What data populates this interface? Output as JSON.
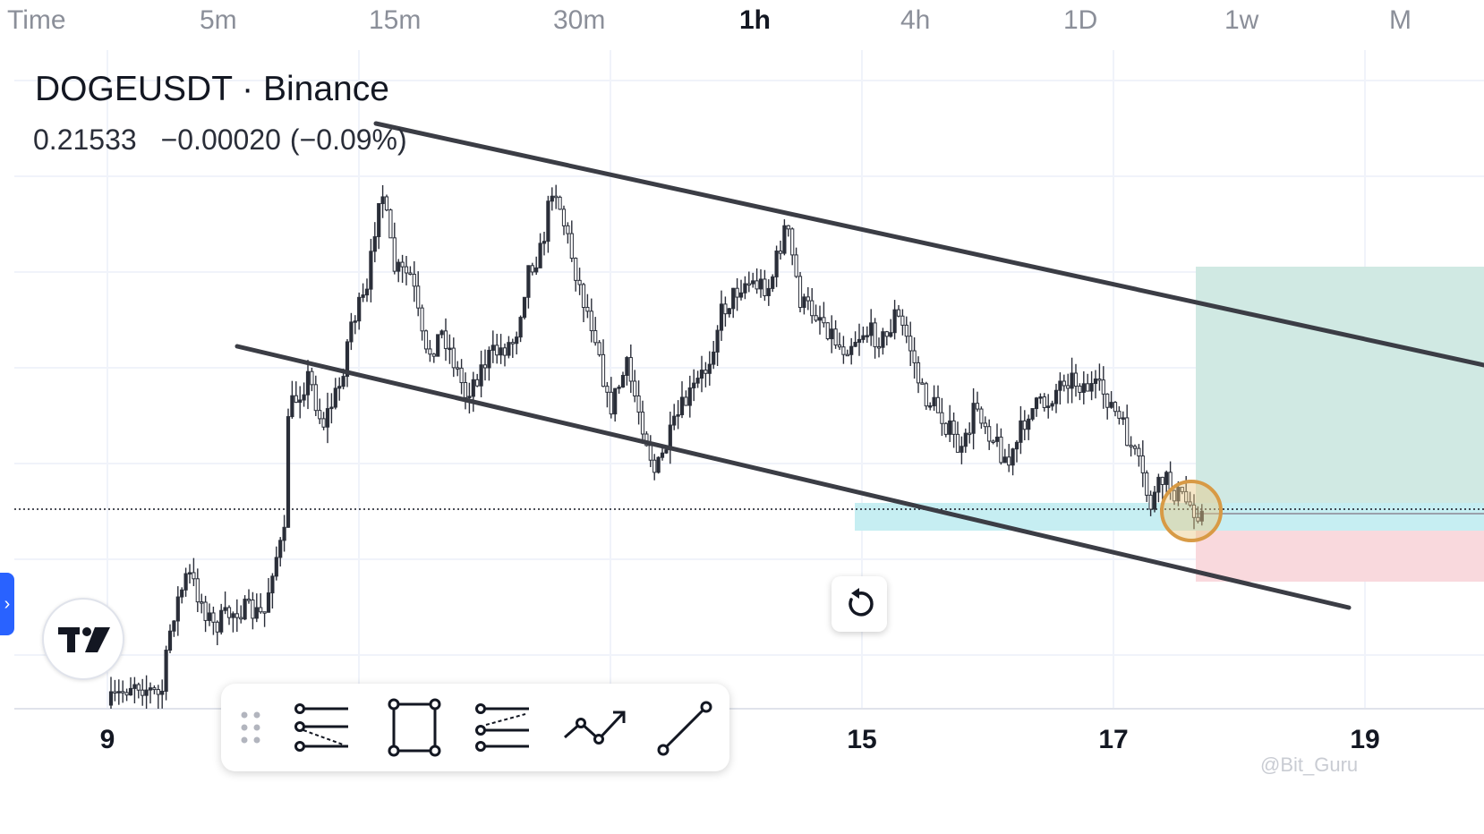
{
  "timeframes": [
    {
      "label": "Time",
      "active": false
    },
    {
      "label": "5m",
      "active": false
    },
    {
      "label": "15m",
      "active": false
    },
    {
      "label": "30m",
      "active": false
    },
    {
      "label": "1h",
      "active": true
    },
    {
      "label": "4h",
      "active": false
    },
    {
      "label": "1D",
      "active": false
    },
    {
      "label": "1w",
      "active": false
    },
    {
      "label": "M",
      "active": false
    }
  ],
  "symbol": {
    "title": "DOGEUSDT · Binance"
  },
  "quote": {
    "last": "0.21533",
    "change": "−0.00020",
    "change_pct": "(−0.09%)"
  },
  "x_axis": {
    "labels": [
      "9",
      "15",
      "17",
      "19"
    ]
  },
  "toolbar": {
    "tools": [
      "drag-handle-icon",
      "fib-retracement-icon",
      "rectangle-icon",
      "parallel-channel-icon",
      "path-icon",
      "trend-line-icon"
    ]
  },
  "colors": {
    "candle": "#2a2e39",
    "channel_line": "#3b3d45",
    "support_zone": "#c6eef2",
    "target_zone": "#cde8e2",
    "stop_zone": "#f9d7db",
    "highlight_circle": "#d89a45",
    "accent": "#2962ff"
  },
  "watermark": "@Bit_Guru"
}
